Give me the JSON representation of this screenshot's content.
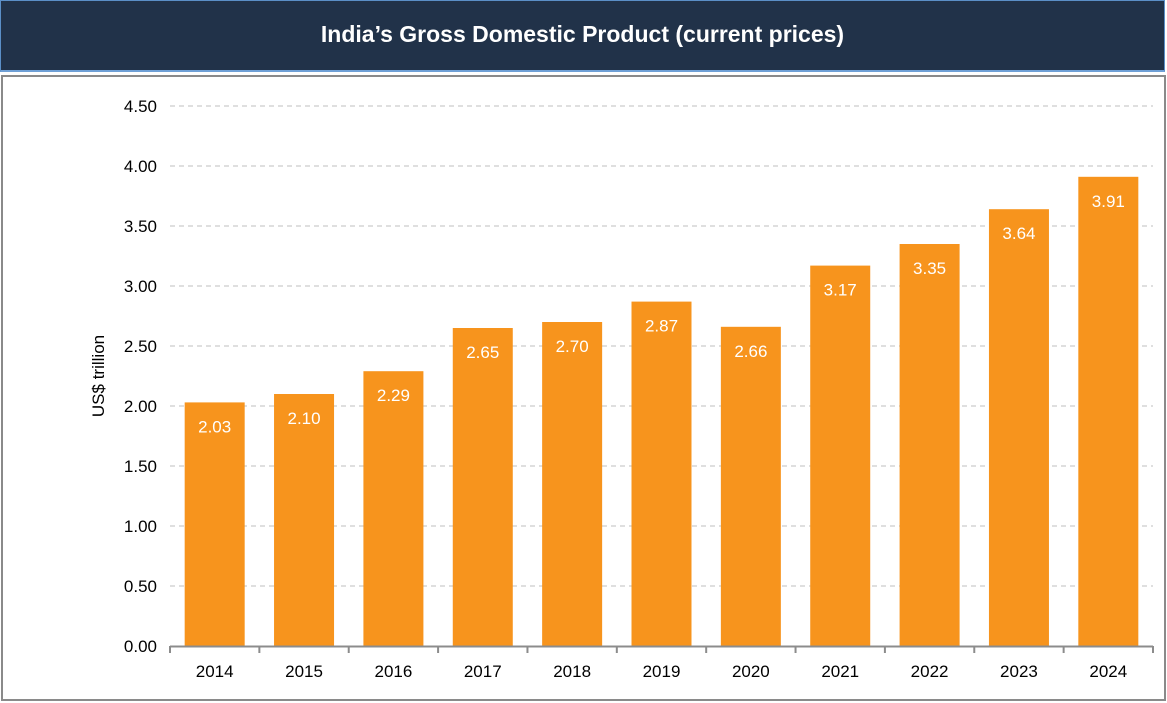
{
  "chart_data": {
    "type": "bar",
    "title": "India’s Gross Domestic Product (current prices)",
    "xlabel": "",
    "ylabel": "US$ trillion",
    "categories": [
      "2014",
      "2015",
      "2016",
      "2017",
      "2018",
      "2019",
      "2020",
      "2021",
      "2022",
      "2023",
      "2024"
    ],
    "values": [
      2.03,
      2.1,
      2.29,
      2.65,
      2.7,
      2.87,
      2.66,
      3.17,
      3.35,
      3.64,
      3.91
    ],
    "data_labels": [
      "2.03",
      "2.10",
      "2.29",
      "2.65",
      "2.70",
      "2.87",
      "2.66",
      "3.17",
      "3.35",
      "3.64",
      "3.91"
    ],
    "ylim": [
      0,
      4.5
    ],
    "yticks": [
      "0.00",
      "0.50",
      "1.00",
      "1.50",
      "2.00",
      "2.50",
      "3.00",
      "3.50",
      "4.00",
      "4.50"
    ],
    "ytick_values": [
      0,
      0.5,
      1.0,
      1.5,
      2.0,
      2.5,
      3.0,
      3.5,
      4.0,
      4.5
    ],
    "grid": "horizontal dashed",
    "legend": "none",
    "colors": {
      "bar": "#f7941d",
      "header_bg": "#213249",
      "grid": "#bfbfbf",
      "axis": "#8c8c8c"
    }
  }
}
